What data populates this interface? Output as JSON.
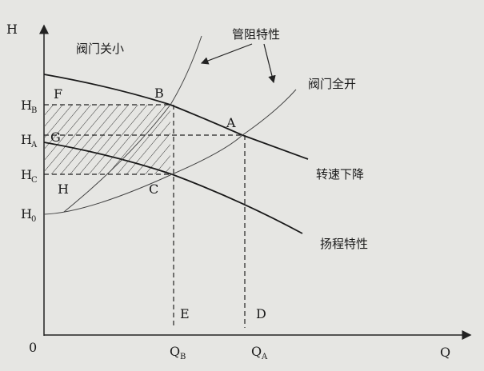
{
  "axes": {
    "y_label": "H",
    "x_label": "Q",
    "origin": "0"
  },
  "y_ticks": [
    {
      "main": "H",
      "sub": "B"
    },
    {
      "main": "H",
      "sub": "A"
    },
    {
      "main": "H",
      "sub": "C"
    },
    {
      "main": "H",
      "sub": "0"
    }
  ],
  "x_ticks": [
    {
      "main": "Q",
      "sub": "B"
    },
    {
      "main": "Q",
      "sub": "A"
    }
  ],
  "points": {
    "A": "A",
    "B": "B",
    "C": "C",
    "D": "D",
    "E": "E",
    "F": "F",
    "G": "G",
    "H": "H"
  },
  "annotations": {
    "valve_closed": "阀门关小",
    "pipe_resistance": "管阻特性",
    "valve_open": "阀门全开",
    "speed_reduced": "转速下降",
    "head_characteristic": "扬程特性"
  },
  "colors": {
    "ink": "#1a1a1a",
    "paper": "#e6e6e3"
  }
}
